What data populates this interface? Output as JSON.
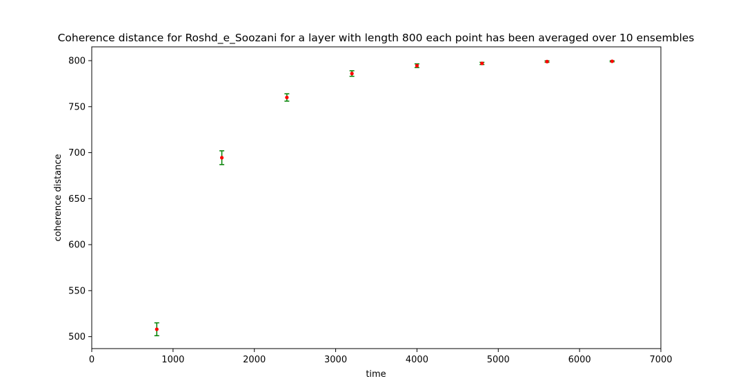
{
  "chart_data": {
    "type": "scatter",
    "title": "Coherence distance for Roshd_e_Soozani for a layer with length 800 each point has been averaged over 10 ensembles",
    "xlabel": "time",
    "ylabel": "coherence distance",
    "xlim": [
      0,
      7000
    ],
    "ylim": [
      487,
      815
    ],
    "xticks": [
      0,
      1000,
      2000,
      3000,
      4000,
      5000,
      6000,
      7000
    ],
    "yticks": [
      500,
      550,
      600,
      650,
      700,
      750,
      800
    ],
    "grid": false,
    "series": [
      {
        "x": [
          800,
          1600,
          2400,
          3200,
          4000,
          4800,
          5600,
          6400
        ],
        "y": [
          508,
          694.5,
          760,
          786,
          794.5,
          797,
          799,
          799.3
        ],
        "yerr": [
          7,
          7.5,
          4,
          3,
          2,
          1.2,
          0.8,
          0.6
        ],
        "marker_color": "#ff0000",
        "errorbar_color": "#008000"
      }
    ]
  }
}
